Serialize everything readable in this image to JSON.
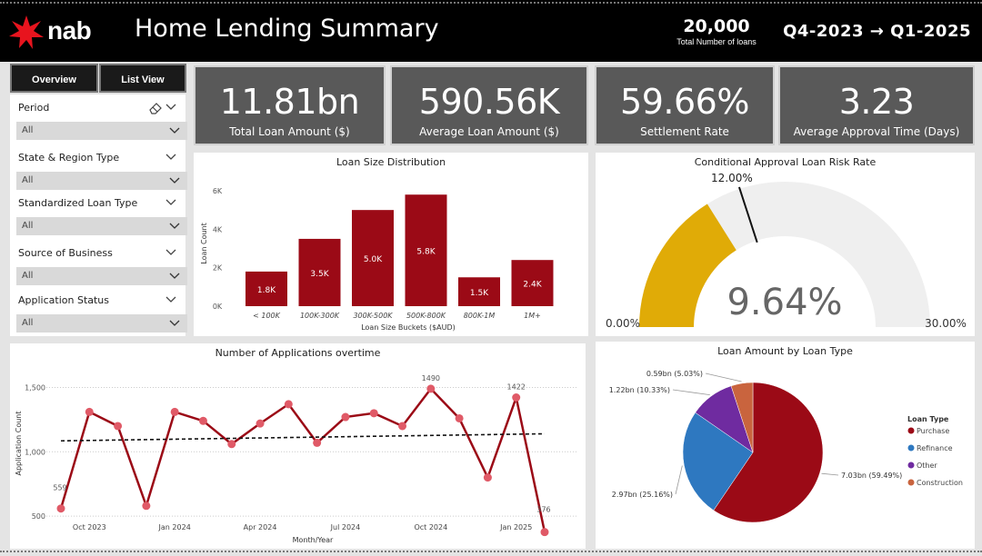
{
  "header": {
    "brand": "nab",
    "title": "Home Lending Summary",
    "total_loans_value": "20,000",
    "total_loans_label": "Total Number of loans",
    "period_range": "Q4-2023 → Q1-2025"
  },
  "tabs": {
    "overview": "Overview",
    "list_view": "List View"
  },
  "filters": [
    {
      "label": "Period",
      "value": "All"
    },
    {
      "label": "State & Region Type",
      "value": "All"
    },
    {
      "label": "Standardized Loan Type",
      "value": "All"
    },
    {
      "label": "Source of Business",
      "value": "All"
    },
    {
      "label": "Application Status",
      "value": "All"
    }
  ],
  "kpis": [
    {
      "value": "11.81bn",
      "label": "Total Loan Amount ($)"
    },
    {
      "value": "590.56K",
      "label": "Average Loan Amount ($)"
    },
    {
      "value": "59.66%",
      "label": "Settlement Rate"
    },
    {
      "value": "3.23",
      "label": "Average Approval Time (Days)"
    }
  ],
  "colors": {
    "primary": "#9b0a16",
    "gauge_fill": "#e0ab07",
    "gauge_track": "#efefef",
    "purchase": "#9b0a16",
    "refinance": "#2e78c0",
    "other": "#6f2ba0",
    "construction": "#c9643e"
  },
  "chart_data": [
    {
      "type": "bar",
      "title": "Loan Size Distribution",
      "xlabel": "Loan Size Buckets ($AUD)",
      "ylabel": "Loan Count",
      "ylim": [
        0,
        6000
      ],
      "yticks": [
        "0K",
        "2K",
        "4K",
        "6K"
      ],
      "categories": [
        "< 100K",
        "100K-300K",
        "300K-500K",
        "500K-800K",
        "800K-1M",
        "1M+"
      ],
      "values": [
        1800,
        3500,
        5000,
        5800,
        1500,
        2400
      ],
      "labels": [
        "1.8K",
        "3.5K",
        "5.0K",
        "5.8K",
        "1.5K",
        "2.4K"
      ]
    },
    {
      "type": "gauge",
      "title": "Conditional Approval Loan Risk Rate",
      "value": 9.64,
      "value_label": "9.64%",
      "min": 0,
      "max": 30,
      "min_label": "0.00%",
      "max_label": "30.00%",
      "target": 12,
      "target_label": "12.00%"
    },
    {
      "type": "line",
      "title": "Number of Applications overtime",
      "xlabel": "Month/Year",
      "ylabel": "Application Count",
      "ylim": [
        430,
        1560
      ],
      "yticks": [
        "500",
        "1,000",
        "1,500"
      ],
      "x": [
        "2023-09",
        "2023-10",
        "2023-11",
        "2023-12",
        "2024-01",
        "2024-02",
        "2024-03",
        "2024-04",
        "2024-05",
        "2024-06",
        "2024-07",
        "2024-08",
        "2024-09",
        "2024-10",
        "2024-11",
        "2024-12",
        "2025-01",
        "2025-02"
      ],
      "xtick_labels": [
        "Oct 2023",
        "Jan 2024",
        "Apr 2024",
        "Jul 2024",
        "Oct 2024",
        "Jan 2025"
      ],
      "values": [
        559,
        1310,
        1200,
        580,
        1310,
        1240,
        1060,
        1220,
        1370,
        1070,
        1270,
        1300,
        1200,
        1490,
        1260,
        800,
        1422,
        376
      ],
      "point_labels": [
        {
          "index": 0,
          "text": "559"
        },
        {
          "index": 13,
          "text": "1490"
        },
        {
          "index": 16,
          "text": "1422"
        },
        {
          "index": 17,
          "text": "376"
        }
      ],
      "trend": [
        1085,
        1140
      ]
    },
    {
      "type": "pie",
      "title": "Loan Amount by Loan Type",
      "legend_title": "Loan Type",
      "slices": [
        {
          "name": "Purchase",
          "value": 59.49,
          "label": "7.03bn (59.49%)"
        },
        {
          "name": "Refinance",
          "value": 25.16,
          "label": "2.97bn (25.16%)"
        },
        {
          "name": "Other",
          "value": 10.33,
          "label": "1.22bn (10.33%)"
        },
        {
          "name": "Construction",
          "value": 5.03,
          "label": "0.59bn (5.03%)"
        }
      ]
    }
  ]
}
